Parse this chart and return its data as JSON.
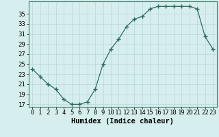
{
  "x": [
    0,
    1,
    2,
    3,
    4,
    5,
    6,
    7,
    8,
    9,
    10,
    11,
    12,
    13,
    14,
    15,
    16,
    17,
    18,
    19,
    20,
    21,
    22,
    23
  ],
  "y": [
    24,
    22.5,
    21,
    20,
    18,
    17,
    17,
    17.5,
    20,
    25,
    28,
    30,
    32.5,
    34,
    34.5,
    36,
    36.5,
    36.5,
    36.5,
    36.5,
    36.5,
    36,
    30.5,
    28
  ],
  "line_color": "#2e6b5e",
  "marker": "+",
  "marker_size": 4,
  "bg_color": "#d6eeee",
  "grid_color": "#b8d8d8",
  "xlabel": "Humidex (Indice chaleur)",
  "xlim": [
    -0.5,
    23.5
  ],
  "ylim": [
    16.5,
    37.5
  ],
  "yticks": [
    17,
    19,
    21,
    23,
    25,
    27,
    29,
    31,
    33,
    35
  ],
  "xticks": [
    0,
    1,
    2,
    3,
    4,
    5,
    6,
    7,
    8,
    9,
    10,
    11,
    12,
    13,
    14,
    15,
    16,
    17,
    18,
    19,
    20,
    21,
    22,
    23
  ],
  "tick_label_fontsize": 6.5,
  "xlabel_fontsize": 7.5,
  "spine_color": "#3a7a6a",
  "grid_lw": 0.5
}
